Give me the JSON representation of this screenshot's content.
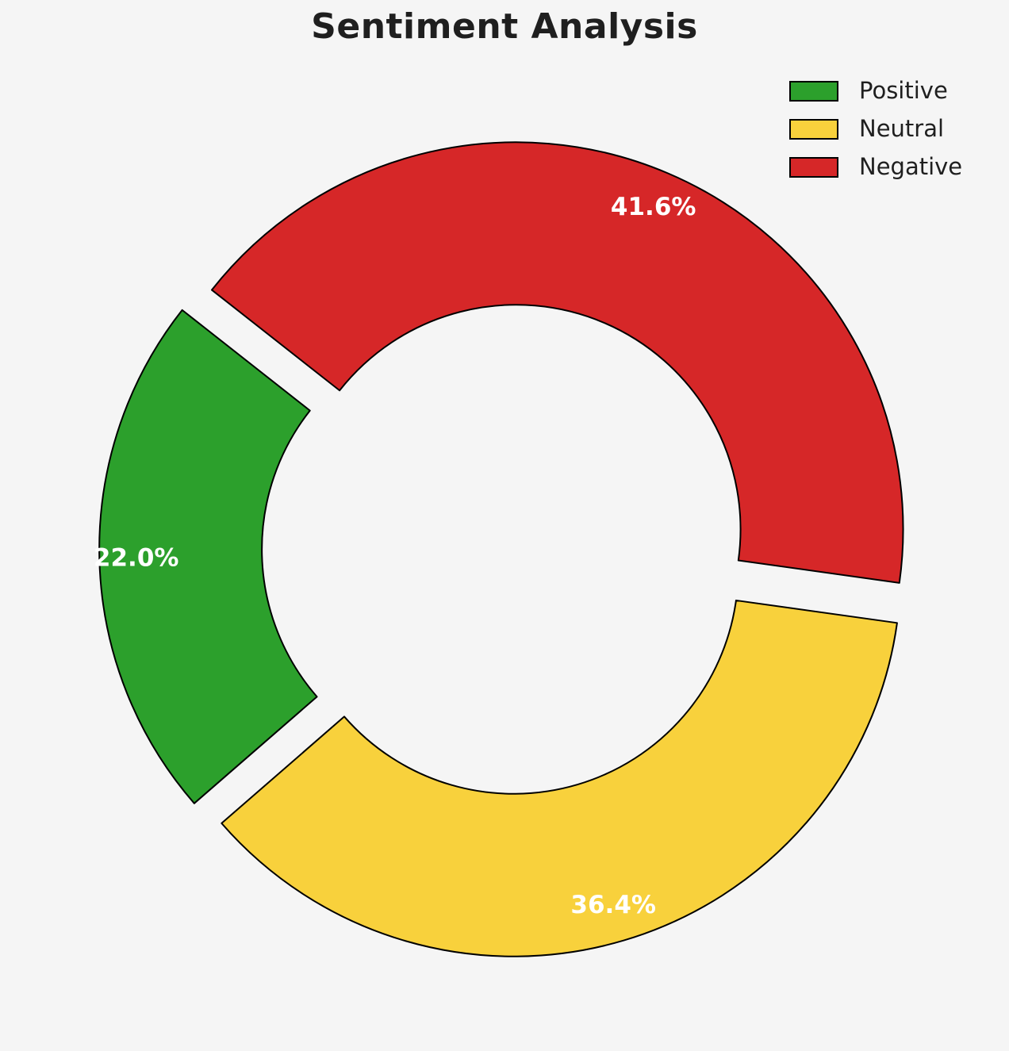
{
  "page": {
    "background": "#f5f5f5",
    "title_color": "#1f1f1f"
  },
  "chart_data": {
    "type": "pie",
    "title": "Sentiment Analysis",
    "donut": true,
    "inner_radius_ratio": 0.58,
    "start_angle": 141.8,
    "direction": "counterclockwise",
    "explode": 0.055,
    "legend_position": "upper right",
    "legend_entries": [
      "Positive",
      "Neutral",
      "Negative"
    ],
    "edge_color": "#000000",
    "percent_label_color": "#ffffff",
    "slices": [
      {
        "label": "Positive",
        "value": 22.0,
        "pct_label": "22.0%",
        "color": "#2ca02c"
      },
      {
        "label": "Neutral",
        "value": 36.4,
        "pct_label": "36.4%",
        "color": "#f8d13c"
      },
      {
        "label": "Negative",
        "value": 41.6,
        "pct_label": "41.6%",
        "color": "#d62728"
      }
    ]
  }
}
